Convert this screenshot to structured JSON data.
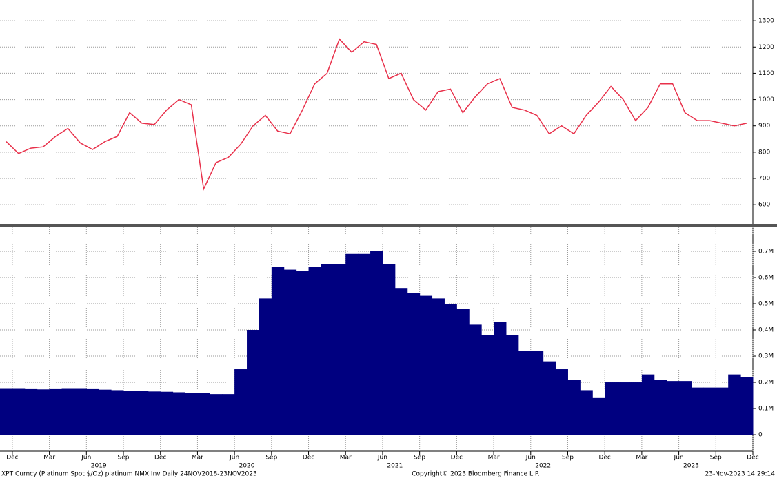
{
  "chart_data": [
    {
      "type": "line",
      "color": "#e8304a",
      "x": [
        "2018-11",
        "2018-12",
        "2019-01",
        "2019-02",
        "2019-03",
        "2019-04",
        "2019-05",
        "2019-06",
        "2019-07",
        "2019-08",
        "2019-09",
        "2019-10",
        "2019-11",
        "2019-12",
        "2020-01",
        "2020-02",
        "2020-03",
        "2020-04",
        "2020-05",
        "2020-06",
        "2020-07",
        "2020-08",
        "2020-09",
        "2020-10",
        "2020-11",
        "2020-12",
        "2021-01",
        "2021-02",
        "2021-03",
        "2021-04",
        "2021-05",
        "2021-06",
        "2021-07",
        "2021-08",
        "2021-09",
        "2021-10",
        "2021-11",
        "2021-12",
        "2022-01",
        "2022-02",
        "2022-03",
        "2022-04",
        "2022-05",
        "2022-06",
        "2022-07",
        "2022-08",
        "2022-09",
        "2022-10",
        "2022-11",
        "2022-12",
        "2023-01",
        "2023-02",
        "2023-03",
        "2023-04",
        "2023-05",
        "2023-06",
        "2023-07",
        "2023-08",
        "2023-09",
        "2023-10",
        "2023-11"
      ],
      "values": [
        840,
        795,
        815,
        820,
        860,
        890,
        835,
        810,
        840,
        860,
        950,
        910,
        905,
        960,
        1000,
        980,
        660,
        760,
        780,
        830,
        900,
        940,
        880,
        870,
        960,
        1060,
        1100,
        1230,
        1180,
        1220,
        1210,
        1080,
        1100,
        1000,
        960,
        1030,
        1040,
        950,
        1010,
        1060,
        1080,
        970,
        960,
        940,
        870,
        900,
        870,
        940,
        990,
        1050,
        1000,
        920,
        970,
        1060,
        1060,
        950,
        920,
        920,
        910,
        900,
        910
      ],
      "xlim": [
        "2018-11",
        "2023-12"
      ],
      "ylim": [
        527,
        1379
      ],
      "yticks": [
        600,
        700,
        800,
        900,
        1000,
        1100,
        1200,
        1300
      ],
      "grid": true
    },
    {
      "type": "bar",
      "color": "#000080",
      "x": [
        "2018-11",
        "2018-12",
        "2019-01",
        "2019-02",
        "2019-03",
        "2019-04",
        "2019-05",
        "2019-06",
        "2019-07",
        "2019-08",
        "2019-09",
        "2019-10",
        "2019-11",
        "2019-12",
        "2020-01",
        "2020-02",
        "2020-03",
        "2020-04",
        "2020-05",
        "2020-06",
        "2020-07",
        "2020-08",
        "2020-09",
        "2020-10",
        "2020-11",
        "2020-12",
        "2021-01",
        "2021-02",
        "2021-03",
        "2021-04",
        "2021-05",
        "2021-06",
        "2021-07",
        "2021-08",
        "2021-09",
        "2021-10",
        "2021-11",
        "2021-12",
        "2022-01",
        "2022-02",
        "2022-03",
        "2022-04",
        "2022-05",
        "2022-06",
        "2022-07",
        "2022-08",
        "2022-09",
        "2022-10",
        "2022-11",
        "2022-12",
        "2023-01",
        "2023-02",
        "2023-03",
        "2023-04",
        "2023-05",
        "2023-06",
        "2023-07",
        "2023-08",
        "2023-09",
        "2023-10",
        "2023-11"
      ],
      "values": [
        0.175,
        0.175,
        0.174,
        0.173,
        0.174,
        0.175,
        0.175,
        0.174,
        0.172,
        0.17,
        0.168,
        0.166,
        0.165,
        0.164,
        0.162,
        0.16,
        0.158,
        0.155,
        0.155,
        0.25,
        0.4,
        0.52,
        0.64,
        0.63,
        0.625,
        0.64,
        0.65,
        0.65,
        0.69,
        0.69,
        0.7,
        0.65,
        0.56,
        0.54,
        0.53,
        0.52,
        0.5,
        0.48,
        0.42,
        0.38,
        0.43,
        0.38,
        0.32,
        0.32,
        0.28,
        0.25,
        0.21,
        0.17,
        0.14,
        0.2,
        0.2,
        0.2,
        0.23,
        0.21,
        0.205,
        0.205,
        0.18,
        0.18,
        0.18,
        0.23,
        0.22
      ],
      "xlim": [
        "2018-11",
        "2023-12"
      ],
      "ylim": [
        -0.063,
        0.792
      ],
      "yticks": [
        0,
        {
          "value": 0.1,
          "label": "0.1M"
        },
        {
          "value": 0.2,
          "label": "0.2M"
        },
        {
          "value": 0.3,
          "label": "0.3M"
        },
        {
          "value": 0.4,
          "label": "0.4M"
        },
        {
          "value": 0.5,
          "label": "0.5M"
        },
        {
          "value": 0.6,
          "label": "0.6M"
        },
        {
          "value": 0.7,
          "label": "0.7M"
        }
      ],
      "grid": true,
      "xgrid": true,
      "xticks": [
        {
          "value": "2018-12",
          "label": "Dec"
        },
        {
          "value": "2019-03",
          "label": "Mar"
        },
        {
          "value": "2019-06",
          "label": "Jun"
        },
        {
          "value": "2019-09",
          "label": "Sep"
        },
        {
          "value": "2019-12",
          "label": "Dec"
        },
        {
          "value": "2020-03",
          "label": "Mar"
        },
        {
          "value": "2020-06",
          "label": "Jun"
        },
        {
          "value": "2020-09",
          "label": "Sep"
        },
        {
          "value": "2020-12",
          "label": "Dec"
        },
        {
          "value": "2021-03",
          "label": "Mar"
        },
        {
          "value": "2021-06",
          "label": "Jun"
        },
        {
          "value": "2021-09",
          "label": "Sep"
        },
        {
          "value": "2021-12",
          "label": "Dec"
        },
        {
          "value": "2022-03",
          "label": "Mar"
        },
        {
          "value": "2022-06",
          "label": "Jun"
        },
        {
          "value": "2022-09",
          "label": "Sep"
        },
        {
          "value": "2022-12",
          "label": "Dec"
        },
        {
          "value": "2023-03",
          "label": "Mar"
        },
        {
          "value": "2023-06",
          "label": "Jun"
        },
        {
          "value": "2023-09",
          "label": "Sep"
        },
        {
          "value": "2023-12",
          "label": "Dec"
        }
      ],
      "years": [
        "2019",
        "2020",
        "2021",
        "2022",
        "2023"
      ]
    }
  ],
  "footer": {
    "description": "XPT Curncy (Platinum Spot  $/Oz) platinum NMX Inv  Daily 24NOV2018-23NOV2023",
    "copyright": "Copyright© 2023 Bloomberg Finance L.P.",
    "timestamp": "23-Nov-2023 14:29:14"
  }
}
